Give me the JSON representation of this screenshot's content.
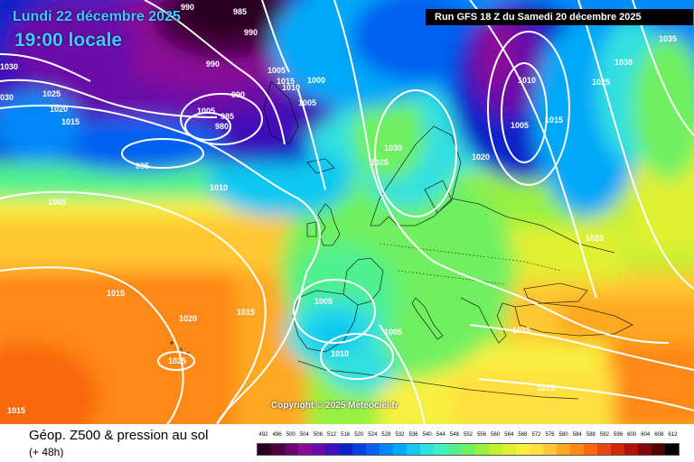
{
  "header": {
    "date_line": "Lundi 22 décembre 2025",
    "time_line": "19:00 locale",
    "run_info": "Run GFS 18 Z du Samedi 20 décembre 2025"
  },
  "copyright": "Copyright © 2025 Meteociel.fr",
  "footer": {
    "product": "Géop. Z500 & pression au sol",
    "lead": "(+ 48h)"
  },
  "legend": {
    "ticks": [
      "492",
      "496",
      "500",
      "504",
      "508",
      "512",
      "516",
      "520",
      "524",
      "528",
      "532",
      "536",
      "540",
      "544",
      "548",
      "552",
      "556",
      "560",
      "564",
      "568",
      "572",
      "576",
      "580",
      "584",
      "588",
      "592",
      "596",
      "600",
      "604",
      "608",
      "612"
    ],
    "colors": [
      "#2a0020",
      "#4a0040",
      "#6a0070",
      "#8a0a98",
      "#6a0aa8",
      "#4010b8",
      "#1020c8",
      "#0840e0",
      "#0060f0",
      "#0088f8",
      "#00a8f8",
      "#10c8f0",
      "#30e0e0",
      "#40f0c0",
      "#50f090",
      "#70f060",
      "#98f040",
      "#c0f030",
      "#e0f030",
      "#f8f040",
      "#ffe040",
      "#ffc830",
      "#ffa820",
      "#ff8818",
      "#f86810",
      "#e84810",
      "#d02808",
      "#b01008",
      "#800808",
      "#500000",
      "#000000"
    ],
    "colors_order": "low-to-high"
  },
  "isobars": [
    {
      "label": "990",
      "pos": "top"
    },
    {
      "label": "985",
      "pos": "top"
    },
    {
      "label": "990",
      "pos": "top"
    },
    {
      "label": "990",
      "pos": "upper-left-low"
    },
    {
      "label": "1030",
      "pos": "far-left"
    },
    {
      "label": "1025",
      "pos": "left"
    },
    {
      "label": "1020",
      "pos": "left"
    },
    {
      "label": "1015",
      "pos": "left"
    },
    {
      "label": "030",
      "pos": "edge-left"
    },
    {
      "label": "1005",
      "pos": "center-low"
    },
    {
      "label": "985",
      "pos": "center-low"
    },
    {
      "label": "980",
      "pos": "center-low"
    },
    {
      "label": "990",
      "pos": "center-low"
    },
    {
      "label": "995",
      "pos": "west-atlantic"
    },
    {
      "label": "1005",
      "pos": "greenland-south"
    },
    {
      "label": "1015",
      "pos": "greenland-south"
    },
    {
      "label": "1010",
      "pos": "greenland-south"
    },
    {
      "label": "1000",
      "pos": "greenland-south"
    },
    {
      "label": "1005",
      "pos": "iceland"
    },
    {
      "label": "1010",
      "pos": "mid-atlantic"
    },
    {
      "label": "1005",
      "pos": "atlantic-west"
    },
    {
      "label": "1030",
      "pos": "scandinavia"
    },
    {
      "label": "1025",
      "pos": "scandinavia"
    },
    {
      "label": "1010",
      "pos": "russia-north"
    },
    {
      "label": "1005",
      "pos": "russia-north"
    },
    {
      "label": "1015",
      "pos": "russia-north"
    },
    {
      "label": "1020",
      "pos": "russia"
    },
    {
      "label": "1035",
      "pos": "far-east"
    },
    {
      "label": "1030",
      "pos": "east"
    },
    {
      "label": "1025",
      "pos": "east"
    },
    {
      "label": "1020",
      "pos": "east-mid"
    },
    {
      "label": "1015",
      "pos": "atlantic-south"
    },
    {
      "label": "1020",
      "pos": "atlantic-south"
    },
    {
      "label": "1025",
      "pos": "azores"
    },
    {
      "label": "1015",
      "pos": "iberia"
    },
    {
      "label": "1005",
      "pos": "iberia"
    },
    {
      "label": "1010",
      "pos": "mediterranean"
    },
    {
      "label": "1005",
      "pos": "mediterranean"
    },
    {
      "label": "1015",
      "pos": "balkans"
    },
    {
      "label": "1015",
      "pos": "africa"
    },
    {
      "label": "1015",
      "pos": "bottom-left"
    }
  ]
}
